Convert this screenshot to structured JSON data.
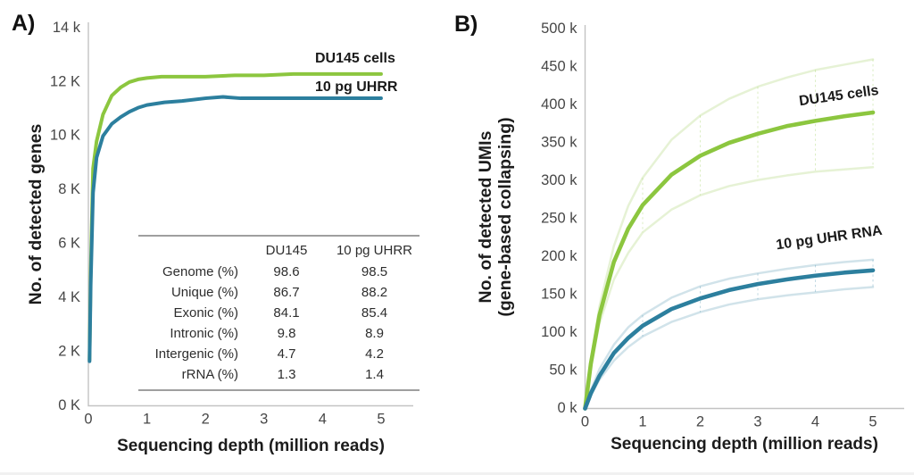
{
  "panels": [
    "A)",
    "B)"
  ],
  "chart_data": [
    {
      "type": "line",
      "panel": "A",
      "xlabel": "Sequencing depth (million reads)",
      "ylabel": "No. of detected genes",
      "xlim": [
        0,
        5.55
      ],
      "ylim": [
        0,
        14000
      ],
      "x_ticks": [
        0,
        1,
        2,
        3,
        4,
        5
      ],
      "y_ticks": [
        0,
        2000,
        4000,
        6000,
        8000,
        10000,
        12000,
        14000
      ],
      "y_tick_labels": [
        "0 K",
        "2 K",
        "4 K",
        "6 K",
        "8 K",
        "10 K",
        "12 K",
        "14 k"
      ],
      "grid": false,
      "legend_position": "end-of-line labels",
      "axis_color": "#c3c3c3",
      "tick_color": "#474747",
      "series": [
        {
          "name": "DU145 cells",
          "role": "main",
          "color": "#8cc63f",
          "x": [
            0.02,
            0.04,
            0.08,
            0.14,
            0.25,
            0.4,
            0.55,
            0.7,
            0.85,
            1.0,
            1.25,
            1.5,
            2.0,
            2.5,
            3.0,
            3.5,
            4.0,
            4.5,
            5.0
          ],
          "y": [
            1700,
            5000,
            8800,
            9800,
            10800,
            11500,
            11800,
            12000,
            12100,
            12150,
            12200,
            12200,
            12200,
            12250,
            12250,
            12300,
            12300,
            12300,
            12300
          ]
        },
        {
          "name": "10 pg UHRR",
          "role": "main",
          "color": "#2c7f9e",
          "x": [
            0.02,
            0.04,
            0.08,
            0.14,
            0.25,
            0.4,
            0.55,
            0.7,
            0.85,
            1.0,
            1.3,
            1.6,
            2.0,
            2.3,
            2.6,
            3.0,
            3.5,
            4.0,
            4.5,
            5.0
          ],
          "y": [
            1650,
            4500,
            7900,
            9200,
            10000,
            10450,
            10700,
            10900,
            11050,
            11150,
            11250,
            11300,
            11400,
            11450,
            11400,
            11400,
            11400,
            11400,
            11400,
            11400
          ]
        }
      ],
      "inset_table": {
        "col_headers": [
          "DU145",
          "10 pg UHRR"
        ],
        "rows": [
          {
            "label": "Genome (%)",
            "du145": "98.6",
            "uhrr": "98.5"
          },
          {
            "label": "Unique (%)",
            "du145": "86.7",
            "uhrr": "88.2"
          },
          {
            "label": "Exonic (%)",
            "du145": "84.1",
            "uhrr": "85.4"
          },
          {
            "label": "Intronic (%)",
            "du145": "9.8",
            "uhrr": "8.9"
          },
          {
            "label": "Intergenic (%)",
            "du145": "4.7",
            "uhrr": "4.2"
          },
          {
            "label": "rRNA (%)",
            "du145": "1.3",
            "uhrr": "1.4"
          }
        ]
      }
    },
    {
      "type": "line",
      "panel": "B",
      "xlabel": "Sequencing depth (million reads)",
      "ylabel": "No. of detected UMIs (gene-based collapsing)",
      "ylabel_line1": "No. of detected UMIs",
      "ylabel_line2": "(gene-based collapsing)",
      "xlim": [
        0,
        5.55
      ],
      "ylim": [
        0,
        500000
      ],
      "x_ticks": [
        0,
        1,
        2,
        3,
        4,
        5
      ],
      "y_ticks": [
        0,
        50000,
        100000,
        150000,
        200000,
        250000,
        300000,
        350000,
        400000,
        450000,
        500000
      ],
      "y_tick_labels": [
        "0 k",
        "50 k",
        "100 k",
        "150 k",
        "200 k",
        "250 k",
        "300 k",
        "350 k",
        "400 k",
        "450 k",
        "500 k"
      ],
      "grid": false,
      "legend_position": "end-of-line labels",
      "axis_color": "#c3c3c3",
      "tick_color": "#474747",
      "sample_depth_markers": [
        1,
        2,
        3,
        4,
        5
      ],
      "band_pairs": [
        [
          1,
          2
        ],
        [
          4,
          5
        ]
      ],
      "series": [
        {
          "name": "DU145 cells",
          "role": "main",
          "color": "#8cc63f",
          "x": [
            0,
            0.1,
            0.25,
            0.5,
            0.75,
            1,
            1.5,
            2,
            2.5,
            3,
            3.5,
            4,
            4.5,
            5
          ],
          "y": [
            0,
            59000,
            123000,
            193000,
            237000,
            268000,
            308000,
            333000,
            350000,
            362000,
            372000,
            379000,
            385000,
            390000
          ]
        },
        {
          "name": "DU145 cells upper band",
          "role": "band",
          "color": "#8cc63f",
          "x": [
            0,
            0.1,
            0.25,
            0.5,
            0.75,
            1,
            1.5,
            2,
            2.5,
            3,
            3.5,
            4,
            4.5,
            5
          ],
          "y": [
            0,
            64000,
            135000,
            214000,
            267000,
            304000,
            354000,
            386000,
            408000,
            424000,
            436000,
            446000,
            453000,
            460000
          ]
        },
        {
          "name": "DU145 cells lower band",
          "role": "band",
          "color": "#8cc63f",
          "x": [
            0,
            0.1,
            0.25,
            0.5,
            0.75,
            1,
            1.5,
            2,
            2.5,
            3,
            3.5,
            4,
            4.5,
            5
          ],
          "y": [
            0,
            55000,
            112000,
            170000,
            205000,
            232000,
            262000,
            281000,
            293000,
            301000,
            307000,
            312000,
            315000,
            318000
          ]
        },
        {
          "name": "10 pg UHR RNA",
          "role": "main",
          "color": "#2c7f9e",
          "x": [
            0,
            0.1,
            0.25,
            0.5,
            0.75,
            1,
            1.5,
            2,
            2.5,
            3,
            3.5,
            4,
            4.5,
            5
          ],
          "y": [
            0,
            20000,
            43000,
            73000,
            93000,
            109000,
            131000,
            145000,
            156000,
            164000,
            170000,
            175000,
            179000,
            182000
          ]
        },
        {
          "name": "10 pg UHR RNA upper band",
          "role": "band",
          "color": "#2c7f9e",
          "x": [
            0,
            0.1,
            0.25,
            0.5,
            0.75,
            1,
            1.5,
            2,
            2.5,
            3,
            3.5,
            4,
            4.5,
            5
          ],
          "y": [
            0,
            24000,
            52000,
            84000,
            107000,
            123000,
            146000,
            161000,
            171000,
            178000,
            184000,
            189000,
            193000,
            196000
          ]
        },
        {
          "name": "10 pg UHR RNA lower band",
          "role": "band",
          "color": "#2c7f9e",
          "x": [
            0,
            0.1,
            0.25,
            0.5,
            0.75,
            1,
            1.5,
            2,
            2.5,
            3,
            3.5,
            4,
            4.5,
            5
          ],
          "y": [
            0,
            17000,
            38000,
            63000,
            81000,
            95000,
            114000,
            127000,
            137000,
            144000,
            149000,
            153000,
            157000,
            160000
          ]
        }
      ]
    }
  ]
}
